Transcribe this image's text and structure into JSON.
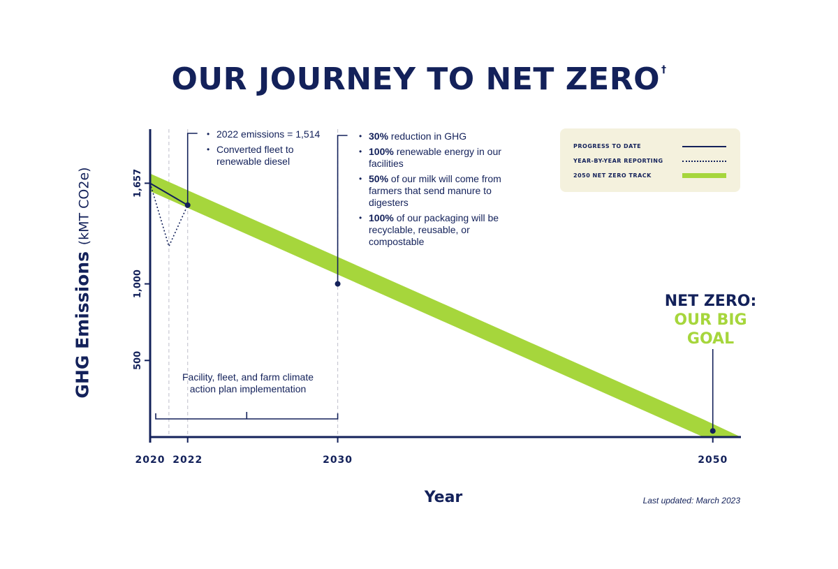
{
  "title": "OUR JOURNEY TO NET ZERO",
  "title_mark": "†",
  "colors": {
    "navy": "#13215a",
    "track_green": "#a6d63c",
    "legend_bg": "#f4f1dd",
    "gridline": "#c8c8d2"
  },
  "chart_data": {
    "type": "line",
    "ylabel": "GHG Emissions",
    "ylabel_unit": "(kMT CO2e)",
    "xlabel": "Year",
    "x_ticks": [
      "2020",
      "2022",
      "2030",
      "2050"
    ],
    "y_ticks": [
      "500",
      "1,000",
      "1,657"
    ],
    "xlim": [
      2020,
      2051.5
    ],
    "ylim": [
      0,
      2010
    ],
    "series": [
      {
        "name": "PROGRESS TO DATE",
        "style": "solid",
        "points": [
          {
            "x": 2020,
            "y": 1657
          },
          {
            "x": 2022,
            "y": 1514
          }
        ]
      },
      {
        "name": "YEAR-BY-YEAR REPORTING",
        "style": "dotted",
        "points": [
          {
            "x": 2020,
            "y": 1657
          },
          {
            "x": 2021,
            "y": 1245
          },
          {
            "x": 2022,
            "y": 1514
          }
        ]
      },
      {
        "name": "2050 NET ZERO TRACK",
        "style": "band",
        "band": [
          {
            "x": 2020,
            "y_low": 1605,
            "y_high": 1720
          },
          {
            "x": 2049.5,
            "y_low": 0,
            "y_high": 115
          },
          {
            "x": 2051.5,
            "y_low": 0,
            "y_high": 0
          }
        ]
      }
    ],
    "markers": [
      {
        "x": 2022,
        "y": 1514
      },
      {
        "x": 2030,
        "y": 1000
      },
      {
        "x": 2050,
        "y": 40
      }
    ],
    "reference_lines_x": [
      2021,
      2022,
      2030
    ]
  },
  "notes": {
    "n2022": {
      "items": [
        "2022 emissions = 1,514",
        "Converted fleet to renewable diesel"
      ]
    },
    "n2030": {
      "items": [
        {
          "bold": "30%",
          "rest": " reduction in GHG"
        },
        {
          "bold": "100%",
          "rest": " renewable energy in our facilities"
        },
        {
          "bold": "50%",
          "rest": " of our milk will come from farmers that send manure to digesters"
        },
        {
          "bold": "100%",
          "rest": " of our packaging will be recyclable, reusable, or compostable"
        }
      ]
    }
  },
  "plan_label": "Facility, fleet, and farm climate action plan implementation",
  "legend": {
    "items": [
      "PROGRESS TO DATE",
      "YEAR-BY-YEAR REPORTING",
      "2050 NET ZERO TRACK"
    ]
  },
  "goal": {
    "line1": "NET ZERO:",
    "line2": "OUR BIG",
    "line3": "GOAL"
  },
  "last_updated": "Last updated: March 2023"
}
